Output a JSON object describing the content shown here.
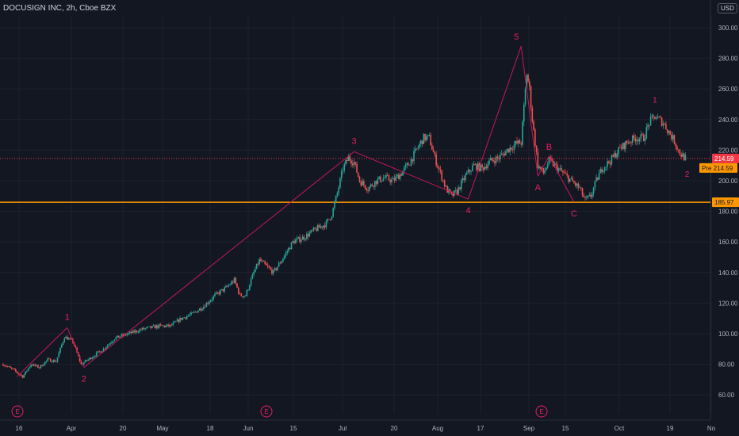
{
  "header": {
    "symbol_label": "DOCUSIGN INC, 2h, Cboe BZX",
    "currency": "USD"
  },
  "chart_data": {
    "type": "candlestick",
    "title": "DOCUSIGN INC, 2h, Cboe BZX",
    "ylim": [
      50,
      310
    ],
    "y_ticks": [
      60,
      80,
      100,
      120,
      140,
      160,
      180,
      200,
      220,
      240,
      260,
      280,
      300
    ],
    "y_tick_labels": [
      "60.00",
      "80.00",
      "100.00",
      "120.00",
      "140.00",
      "160.00",
      "180.00",
      "200.00",
      "220.00",
      "240.00",
      "260.00",
      "280.00",
      "300.00"
    ],
    "x_tick_labels": [
      "16",
      "Apr",
      "20",
      "May",
      "18",
      "Jun",
      "15",
      "Jul",
      "20",
      "Aug",
      "17",
      "Sep",
      "15",
      "Oct",
      "19",
      "No"
    ],
    "price_path": [
      [
        0,
        80
      ],
      [
        4,
        76
      ],
      [
        7,
        72
      ],
      [
        10,
        80
      ],
      [
        13,
        78
      ],
      [
        16,
        83
      ],
      [
        19,
        82
      ],
      [
        22,
        98
      ],
      [
        25,
        95
      ],
      [
        28,
        80
      ],
      [
        32,
        85
      ],
      [
        36,
        90
      ],
      [
        40,
        97
      ],
      [
        45,
        100
      ],
      [
        50,
        103
      ],
      [
        56,
        105
      ],
      [
        60,
        105
      ],
      [
        64,
        110
      ],
      [
        68,
        113
      ],
      [
        72,
        118
      ],
      [
        76,
        125
      ],
      [
        80,
        130
      ],
      [
        83,
        135
      ],
      [
        85,
        125
      ],
      [
        87,
        125
      ],
      [
        90,
        140
      ],
      [
        92,
        148
      ],
      [
        94,
        145
      ],
      [
        97,
        140
      ],
      [
        100,
        148
      ],
      [
        104,
        160
      ],
      [
        108,
        163
      ],
      [
        112,
        168
      ],
      [
        116,
        172
      ],
      [
        118,
        178
      ],
      [
        120,
        192
      ],
      [
        122,
        208
      ],
      [
        124,
        215
      ],
      [
        126,
        212
      ],
      [
        128,
        200
      ],
      [
        131,
        195
      ],
      [
        134,
        200
      ],
      [
        137,
        202
      ],
      [
        140,
        200
      ],
      [
        143,
        205
      ],
      [
        146,
        212
      ],
      [
        149,
        222
      ],
      [
        151,
        228
      ],
      [
        153,
        228
      ],
      [
        155,
        215
      ],
      [
        157,
        205
      ],
      [
        159,
        195
      ],
      [
        161,
        190
      ],
      [
        163,
        193
      ],
      [
        166,
        203
      ],
      [
        169,
        210
      ],
      [
        172,
        208
      ],
      [
        175,
        213
      ],
      [
        178,
        215
      ],
      [
        181,
        220
      ],
      [
        184,
        224
      ],
      [
        186,
        225
      ],
      [
        187,
        248
      ],
      [
        188,
        270
      ],
      [
        189,
        260
      ],
      [
        190,
        240
      ],
      [
        192,
        210
      ],
      [
        194,
        205
      ],
      [
        196,
        213
      ],
      [
        198,
        210
      ],
      [
        201,
        205
      ],
      [
        204,
        200
      ],
      [
        207,
        195
      ],
      [
        209,
        187
      ],
      [
        211,
        190
      ],
      [
        213,
        200
      ],
      [
        215,
        208
      ],
      [
        218,
        213
      ],
      [
        221,
        220
      ],
      [
        224,
        225
      ],
      [
        227,
        228
      ],
      [
        230,
        228
      ],
      [
        232,
        238
      ],
      [
        234,
        242
      ],
      [
        237,
        238
      ],
      [
        239,
        232
      ],
      [
        241,
        226
      ],
      [
        243,
        218
      ],
      [
        245,
        214.59
      ]
    ],
    "current_price": "214.59",
    "current_price_tag": "214.59",
    "prev_close_tag": "Pre  214.59",
    "support_level": "185.97",
    "waves": [
      {
        "label": "1",
        "t": 23,
        "price": 104
      },
      {
        "label": "2",
        "t": 29,
        "price": 78
      },
      {
        "label": "3",
        "t": 126,
        "price": 219
      },
      {
        "label": "4",
        "t": 167,
        "price": 188
      },
      {
        "label": "5",
        "t": 186,
        "price": 288
      },
      {
        "label": "A",
        "t": 192,
        "price": 203
      },
      {
        "label": "B",
        "t": 196,
        "price": 216
      },
      {
        "label": "C",
        "t": 205,
        "price": 186
      }
    ],
    "wave_labels_secondary": [
      {
        "label": "1",
        "t": 234,
        "price": 247
      },
      {
        "label": "2",
        "t": 245,
        "price": 212
      }
    ],
    "events": [
      "E",
      "E",
      "E"
    ],
    "colors": {
      "background": "#131722",
      "up": "#26a69a",
      "down": "#ef5350",
      "wave": "#c2185b",
      "wave_label": "#e91e63",
      "support": "#ff9800",
      "price_tag": "#f23645",
      "grid": "#1e222d"
    }
  }
}
